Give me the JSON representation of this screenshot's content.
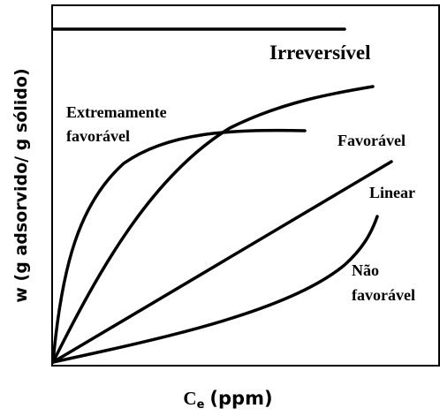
{
  "axes": {
    "y_label": "w (g adsorvido/ g sólido)",
    "x_label": {
      "symbol": "C",
      "subscript": "e",
      "unit": "(ppm)"
    }
  },
  "curves": [
    {
      "label": [
        "Irreversível"
      ]
    },
    {
      "label": [
        "Extremamente",
        "favorável"
      ]
    },
    {
      "label": [
        "Favorável"
      ]
    },
    {
      "label": [
        "Linear"
      ]
    },
    {
      "label": [
        "Não",
        "favorável"
      ]
    }
  ]
}
